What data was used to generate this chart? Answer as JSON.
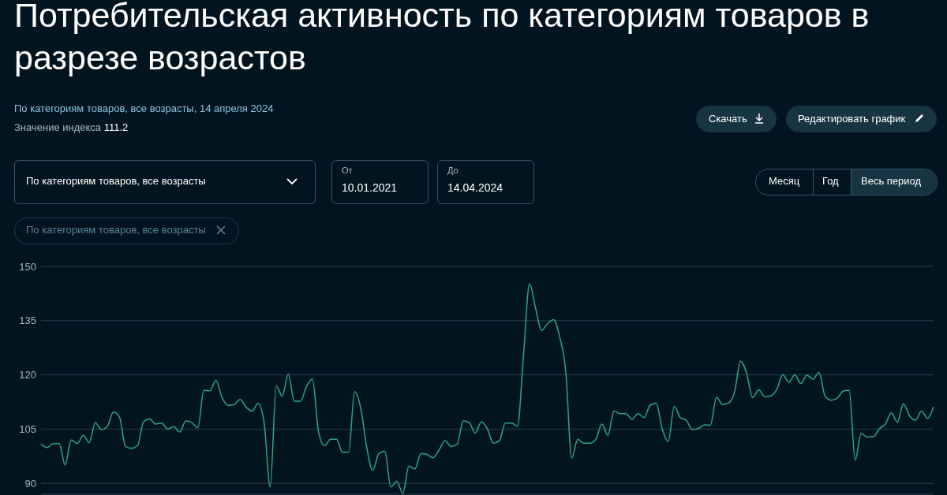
{
  "chart_data": {
    "type": "line",
    "title": "Потребительская активность по категориям товаров в разрезе возрастов",
    "subtitle": "По категориям товаров, все возрасты, 14 апреля 2024",
    "annotations": [
      "Значение индекса",
      "111.2",
      "Скачать",
      "Редактировать график",
      "По категориям товаров, все возрасты",
      "От",
      "10.01.2021",
      "До",
      "14.04.2024",
      "Месяц",
      "Год",
      "Весь период",
      "По категориям товаров, все возрасты"
    ],
    "categories": [
      null,
      null,
      null,
      null,
      null,
      null,
      null,
      null,
      null,
      null,
      null,
      null,
      null,
      null,
      null,
      null,
      null,
      null,
      null,
      null,
      null,
      null,
      null,
      null,
      null,
      null,
      null,
      null,
      null,
      null,
      null,
      null,
      null,
      null,
      null,
      null,
      null,
      null,
      null,
      null,
      null,
      null,
      null,
      null,
      null,
      null,
      null,
      null,
      null,
      null,
      null,
      null,
      null,
      null,
      null,
      null,
      null,
      null,
      null,
      null,
      null,
      null,
      null,
      null,
      null,
      null,
      null,
      null,
      null,
      null,
      null,
      null,
      null,
      null,
      null,
      null,
      null,
      null,
      null,
      null,
      null,
      null,
      null,
      null,
      null,
      null,
      null,
      null,
      null,
      null,
      null,
      null,
      null,
      null,
      null,
      null,
      null,
      null,
      null,
      null,
      null,
      null,
      null,
      null,
      null,
      null,
      null,
      null,
      null,
      null,
      null,
      null,
      null,
      null,
      null,
      null,
      null,
      null,
      null,
      null,
      null,
      null,
      null,
      null,
      null,
      null,
      null,
      null,
      null,
      null,
      null,
      null,
      null,
      null,
      null,
      null,
      null,
      null,
      null,
      null,
      null,
      null,
      null,
      null,
      null,
      null,
      null,
      null,
      null
    ],
    "series": [
      {
        "color": "#2ba58b",
        "values": [
          100.9,
          99.9,
          101.0,
          101.0,
          95.1,
          102.0,
          101.0,
          103.3,
          101.3,
          106.8,
          104.9,
          105.8,
          109.7,
          108.4,
          100.2,
          99.7,
          100.4,
          107.0,
          107.8,
          106.4,
          106.7,
          105.0,
          105.7,
          104.2,
          107.3,
          106.8,
          105.4,
          115.7,
          115.6,
          118.5,
          113.8,
          111.6,
          111.8,
          113.2,
          111.1,
          110.0,
          112.1,
          106.6,
          89.0,
          116.9,
          114.1,
          120.2,
          112.7,
          112.7,
          116.7,
          118.9,
          104.4,
          100.4,
          102.2,
          102.2,
          98.6,
          98.6,
          115.4,
          110.9,
          100.0,
          93.6,
          98.2,
          98.9,
          89.0,
          90.6,
          87.2,
          94.8,
          94.0,
          98.2,
          98.0,
          97.1,
          99.2,
          101.8,
          100.2,
          100.8,
          107.3,
          106.8,
          103.9,
          107.0,
          105.1,
          101.1,
          101.8,
          106.7,
          106.7,
          105.8,
          125.4,
          145.2,
          138.5,
          132.3,
          134.2,
          135.3,
          130.5,
          121.1,
          97.0,
          102.2,
          101.1,
          101.1,
          102.2,
          106.4,
          103.3,
          110.0,
          109.3,
          109.3,
          107.7,
          109.3,
          108.2,
          111.6,
          112.2,
          105.1,
          101.6,
          111.3,
          108.2,
          107.4,
          104.9,
          105.2,
          106.2,
          106.1,
          113.8,
          111.8,
          112.2,
          115.3,
          123.8,
          120.4,
          113.7,
          115.9,
          114.0,
          114.2,
          116.0,
          120.0,
          118.0,
          120.0,
          117.6,
          119.9,
          118.8,
          120.7,
          114.2,
          113.0,
          113.5,
          115.5,
          115.8,
          96.4,
          103.8,
          102.8,
          102.9,
          105.1,
          106.4,
          109.5,
          106.9,
          112.0,
          108.7,
          107.5,
          110.0,
          108.0,
          111.2
        ]
      }
    ],
    "ylim": [
      87,
      150
    ],
    "yticks": [
      90,
      105,
      120,
      135,
      150
    ],
    "grid": "y",
    "tick_labels": "y",
    "marker": "none",
    "line_style": "solid",
    "legend": false
  }
}
